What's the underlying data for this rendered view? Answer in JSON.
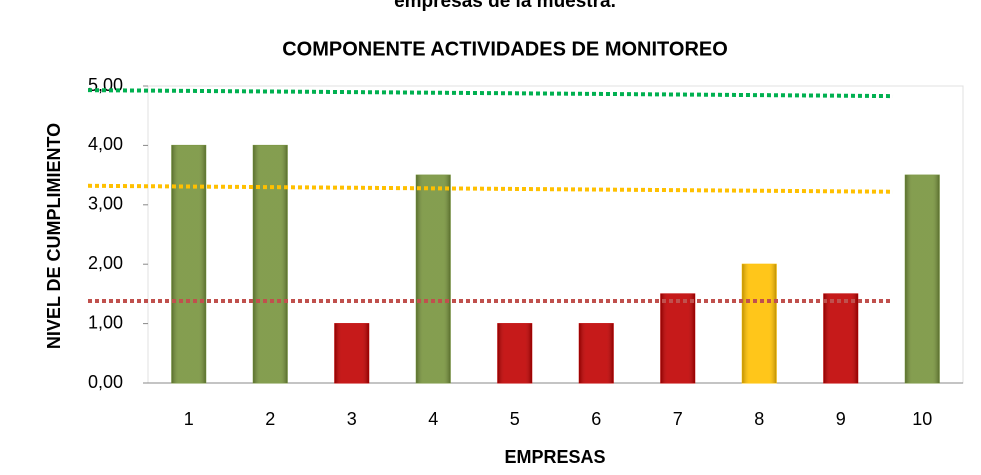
{
  "header": "empresas de la muestra.",
  "chart_data": {
    "type": "bar",
    "title": "COMPONENTE ACTIVIDADES DE MONITOREO",
    "x_label": "EMPRESAS",
    "y_label": "NIVEL DE CUMPLIMIENTO",
    "categories": [
      "1",
      "2",
      "3",
      "4",
      "5",
      "6",
      "7",
      "8",
      "9",
      "10"
    ],
    "values": [
      4,
      4,
      1,
      3.5,
      1,
      1,
      1.5,
      2,
      1.5,
      3.5
    ],
    "colors": [
      "#77933c",
      "#77933c",
      "#c00000",
      "#77933c",
      "#c00000",
      "#c00000",
      "#c00000",
      "#ffc000",
      "#c00000",
      "#77933c"
    ],
    "ylim": [
      0,
      5
    ],
    "yticks": [
      {
        "value": 0,
        "label": "0,00"
      },
      {
        "value": 1,
        "label": "1,00"
      },
      {
        "value": 2,
        "label": "2,00"
      },
      {
        "value": 3,
        "label": "3,00"
      },
      {
        "value": 4,
        "label": "4,00"
      },
      {
        "value": 5,
        "label": "5,00"
      }
    ],
    "reference_lines": [
      {
        "color": "#00b050",
        "values": [
          4.93,
          4.83
        ]
      },
      {
        "color": "#ffc000",
        "values": [
          3.32,
          3.22
        ]
      },
      {
        "color": "#c0504d",
        "values": [
          1.38,
          1.38
        ]
      }
    ]
  }
}
